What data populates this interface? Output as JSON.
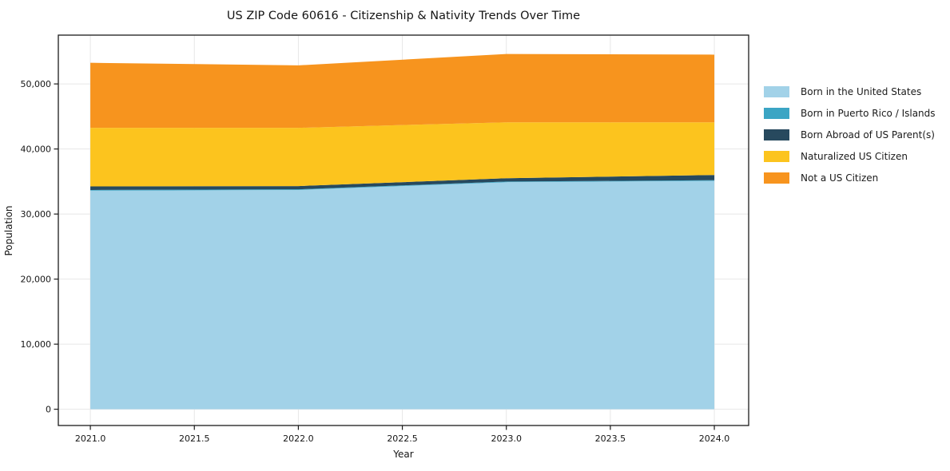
{
  "chart": {
    "title": "US ZIP Code 60616 - Citizenship & Nativity Trends Over Time",
    "xlabel": "Year",
    "ylabel": "Population"
  },
  "legend": {
    "position": "right",
    "items": [
      {
        "label": "Born in the United States",
        "color": "#a2d2e8"
      },
      {
        "label": "Born in Puerto Rico / Islands",
        "color": "#3ba5c4"
      },
      {
        "label": "Born Abroad of US Parent(s)",
        "color": "#27495e"
      },
      {
        "label": "Naturalized US Citizen",
        "color": "#fcc41e"
      },
      {
        "label": "Not a US Citizen",
        "color": "#f7941e"
      }
    ]
  },
  "chart_data": {
    "type": "area",
    "stacked": true,
    "title": "US ZIP Code 60616 - Citizenship & Nativity Trends Over Time",
    "xlabel": "Year",
    "ylabel": "Population",
    "x": [
      2021,
      2022,
      2023,
      2024
    ],
    "series": [
      {
        "name": "Born in the United States",
        "color": "#a2d2e8",
        "values": [
          33600,
          33700,
          34900,
          35100
        ]
      },
      {
        "name": "Born in Puerto Rico / Islands",
        "color": "#3ba5c4",
        "values": [
          100,
          100,
          100,
          100
        ]
      },
      {
        "name": "Born Abroad of US Parent(s)",
        "color": "#27495e",
        "values": [
          550,
          500,
          500,
          800
        ]
      },
      {
        "name": "Naturalized US Citizen",
        "color": "#fcc41e",
        "values": [
          9000,
          8950,
          8600,
          8100
        ]
      },
      {
        "name": "Not a US Citizen",
        "color": "#f7941e",
        "values": [
          10000,
          9600,
          10500,
          10400
        ]
      }
    ],
    "totals": [
      53250,
      52850,
      54600,
      54500
    ],
    "xlim": [
      2020.846,
      2024.165
    ],
    "ylim": [
      -2500,
      57500
    ],
    "x_ticks": [
      {
        "value": 2021.0,
        "label": "2021.0"
      },
      {
        "value": 2021.5,
        "label": "2021.5"
      },
      {
        "value": 2022.0,
        "label": "2022.0"
      },
      {
        "value": 2022.5,
        "label": "2022.5"
      },
      {
        "value": 2023.0,
        "label": "2023.0"
      },
      {
        "value": 2023.5,
        "label": "2023.5"
      },
      {
        "value": 2024.0,
        "label": "2024.0"
      }
    ],
    "y_ticks": [
      {
        "value": 0,
        "label": "0"
      },
      {
        "value": 10000,
        "label": "10,000"
      },
      {
        "value": 20000,
        "label": "20,000"
      },
      {
        "value": 30000,
        "label": "30,000"
      },
      {
        "value": 40000,
        "label": "40,000"
      },
      {
        "value": 50000,
        "label": "50,000"
      }
    ],
    "grid": true,
    "legend_position": "right"
  }
}
